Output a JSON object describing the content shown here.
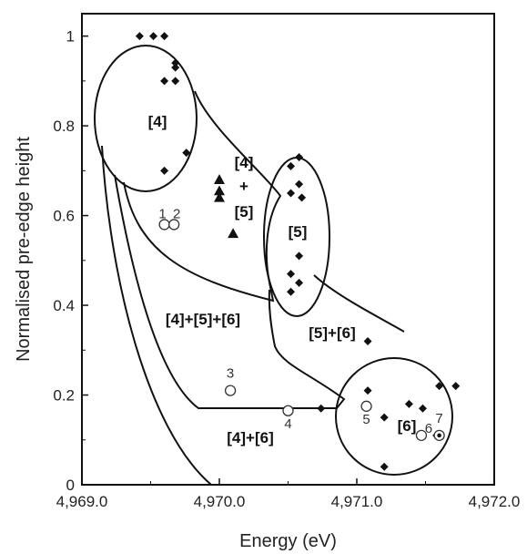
{
  "chart_data": {
    "type": "scatter",
    "xlabel": "Energy (eV)",
    "ylabel": "Normalised pre-edge height",
    "xlim": [
      4969.0,
      4972.0
    ],
    "ylim": [
      0,
      1.05
    ],
    "x_ticks": [
      "4,969.0",
      "4,970.0",
      "4,971.0",
      "4,972.0"
    ],
    "y_ticks": [
      "0",
      "0.2",
      "0.4",
      "0.6",
      "0.8",
      "1"
    ],
    "grid": false,
    "series": [
      {
        "marker": "diamond",
        "points": [
          {
            "x": 4969.42,
            "y": 1.0
          },
          {
            "x": 4969.52,
            "y": 1.0
          },
          {
            "x": 4969.6,
            "y": 1.0
          },
          {
            "x": 4969.68,
            "y": 0.94
          },
          {
            "x": 4969.68,
            "y": 0.93
          },
          {
            "x": 4969.68,
            "y": 0.9
          },
          {
            "x": 4969.6,
            "y": 0.9
          },
          {
            "x": 4969.76,
            "y": 0.74
          },
          {
            "x": 4969.6,
            "y": 0.7
          },
          {
            "x": 4970.58,
            "y": 0.73
          },
          {
            "x": 4970.52,
            "y": 0.71
          },
          {
            "x": 4970.58,
            "y": 0.67
          },
          {
            "x": 4970.52,
            "y": 0.65
          },
          {
            "x": 4970.6,
            "y": 0.64
          },
          {
            "x": 4970.58,
            "y": 0.51
          },
          {
            "x": 4970.52,
            "y": 0.47
          },
          {
            "x": 4970.58,
            "y": 0.45
          },
          {
            "x": 4970.52,
            "y": 0.43
          },
          {
            "x": 4971.08,
            "y": 0.32
          },
          {
            "x": 4971.08,
            "y": 0.21
          },
          {
            "x": 4971.2,
            "y": 0.15
          },
          {
            "x": 4971.38,
            "y": 0.18
          },
          {
            "x": 4971.48,
            "y": 0.17
          },
          {
            "x": 4971.6,
            "y": 0.22
          },
          {
            "x": 4971.72,
            "y": 0.22
          },
          {
            "x": 4971.58,
            "y": 0.11
          },
          {
            "x": 4971.2,
            "y": 0.04
          },
          {
            "x": 4970.74,
            "y": 0.17
          }
        ]
      },
      {
        "marker": "triangle",
        "points": [
          {
            "x": 4970.0,
            "y": 0.68
          },
          {
            "x": 4970.0,
            "y": 0.655
          },
          {
            "x": 4970.0,
            "y": 0.64
          },
          {
            "x": 4970.1,
            "y": 0.56
          }
        ]
      },
      {
        "marker": "circle",
        "points": [
          {
            "x": 4969.6,
            "y": 0.58,
            "label": "1"
          },
          {
            "x": 4969.67,
            "y": 0.58,
            "label": "2"
          },
          {
            "x": 4970.08,
            "y": 0.21,
            "label": "3"
          },
          {
            "x": 4970.5,
            "y": 0.165,
            "label": "4"
          },
          {
            "x": 4971.07,
            "y": 0.175,
            "label": "5"
          },
          {
            "x": 4971.47,
            "y": 0.11,
            "label": "6"
          },
          {
            "x": 4971.6,
            "y": 0.11,
            "label": "7"
          }
        ]
      }
    ],
    "annotations": [
      "[4]",
      "[4]",
      "+",
      "[5]",
      "[5]",
      "[6]",
      "[4]+[5]+[6]",
      "[5]+[6]",
      "[4]+[6]"
    ]
  }
}
